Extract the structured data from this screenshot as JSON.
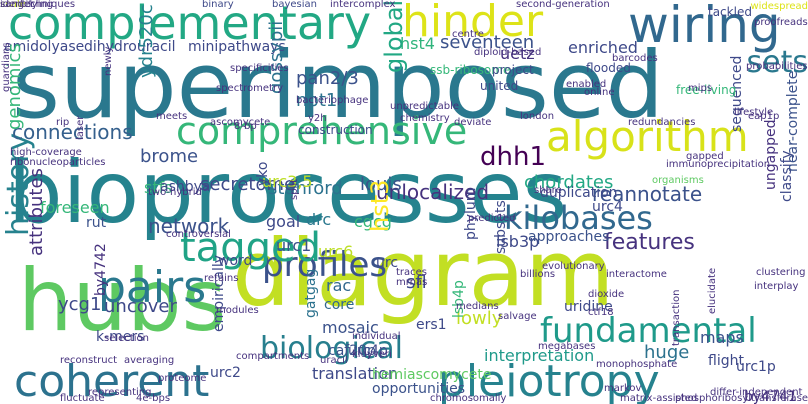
{
  "cloud": {
    "background": "#ffffff",
    "words": [
      {
        "t": "superimposed",
        "c": "#2a788e"
      },
      {
        "t": "bioprocesses",
        "c": "#25838e"
      },
      {
        "t": "diagram",
        "c": "#c2df23"
      },
      {
        "t": "hubs",
        "c": "#5ec962"
      },
      {
        "t": "complementary",
        "c": "#22a884"
      },
      {
        "t": "wiring",
        "c": "#31688e"
      },
      {
        "t": "hinder",
        "c": "#dde318"
      },
      {
        "t": "comprehensive",
        "c": "#35b779"
      },
      {
        "t": "algorithm",
        "c": "#d8e219"
      },
      {
        "t": "pleiotropy",
        "c": "#26828e"
      },
      {
        "t": "coherent",
        "c": "#2c728e"
      },
      {
        "t": "profiles",
        "c": "#3b528b"
      },
      {
        "t": "pairs",
        "c": "#2a788e"
      },
      {
        "t": "tagged",
        "c": "#20a386"
      },
      {
        "t": "fundamental",
        "c": "#1f9a8a"
      },
      {
        "t": "biological",
        "c": "#277f8e"
      },
      {
        "t": "kilobases",
        "c": "#31688e"
      },
      {
        "t": "history",
        "c": "#26828e"
      },
      {
        "t": "dhh1",
        "c": "#440154"
      },
      {
        "t": "sets",
        "c": "#2a788e"
      },
      {
        "t": "hst4",
        "c": "#2fb47c"
      },
      {
        "t": "seventeen",
        "c": "#3b528b"
      },
      {
        "t": "uetz",
        "c": "#46327e"
      },
      {
        "t": "amidolyase",
        "c": "#3e4989"
      },
      {
        "t": "dihydrouracil",
        "c": "#3e4989"
      },
      {
        "t": "minipathways",
        "c": "#3e4989"
      },
      {
        "t": "connections",
        "c": "#35608d"
      },
      {
        "t": "enriched",
        "c": "#3e4989"
      },
      {
        "t": "global",
        "c": "#22a884"
      },
      {
        "t": "ydr520c",
        "c": "#26828e"
      },
      {
        "t": "pan2/3",
        "c": "#3b528b"
      },
      {
        "t": "npt1",
        "c": "#2c728e"
      },
      {
        "t": "gossypii",
        "c": "#2c728e"
      },
      {
        "t": "network",
        "c": "#3b528b"
      },
      {
        "t": "features",
        "c": "#46327e"
      },
      {
        "t": "reannotate",
        "c": "#3b528b"
      },
      {
        "t": "unlocalized",
        "c": "#46327e"
      },
      {
        "t": "chordates",
        "c": "#22a884"
      },
      {
        "t": "stanford",
        "c": "#2c728e"
      },
      {
        "t": "louis",
        "c": "#3b528b"
      },
      {
        "t": "secretome",
        "c": "#3e4989"
      },
      {
        "t": "urc3,5",
        "c": "#bddf26"
      },
      {
        "t": "genomics",
        "c": "#35b779"
      },
      {
        "t": "goal",
        "c": "#3e4989"
      },
      {
        "t": "drc",
        "c": "#2a788e"
      },
      {
        "t": "cgcg",
        "c": "#35b779"
      },
      {
        "t": "hst3",
        "c": "#fde725"
      },
      {
        "t": "urc4",
        "c": "#3e4989"
      },
      {
        "t": "lsb3p",
        "c": "#3e4989"
      },
      {
        "t": "attributes",
        "c": "#46327e"
      },
      {
        "t": "uncover",
        "c": "#3e4989"
      },
      {
        "t": "ycg1",
        "c": "#3e4989"
      },
      {
        "t": "foreseen",
        "c": "#35b779"
      },
      {
        "t": "urc1",
        "c": "#3b528b"
      },
      {
        "t": "urc6",
        "c": "#bddf26"
      },
      {
        "t": "rac",
        "c": "#31688e"
      },
      {
        "t": "sfl",
        "c": "#3e4989"
      },
      {
        "t": "core",
        "c": "#31688e"
      },
      {
        "t": "mosaic",
        "c": "#3b528b"
      },
      {
        "t": "ers1",
        "c": "#3e4989"
      },
      {
        "t": "lowly",
        "c": "#c2df23"
      },
      {
        "t": "huge",
        "c": "#2c728e"
      },
      {
        "t": "maps",
        "c": "#3b528b"
      },
      {
        "t": "flight",
        "c": "#3e4989"
      },
      {
        "t": "interpretation",
        "c": "#1f9a8a"
      },
      {
        "t": "translation",
        "c": "#3e4989"
      },
      {
        "t": "opportunities",
        "c": "#3b528b"
      },
      {
        "t": "urc2",
        "c": "#3e4989"
      },
      {
        "t": "urc1p",
        "c": "#3e4989"
      },
      {
        "t": "urc4p",
        "c": "#3e4989"
      },
      {
        "t": "caf20p",
        "c": "#3b528b"
      },
      {
        "t": "k-mers",
        "c": "#3e4989"
      },
      {
        "t": "by4742",
        "c": "#46327e"
      },
      {
        "t": "gatgag",
        "c": "#2c728e"
      },
      {
        "t": "by4741",
        "c": "#46327e"
      },
      {
        "t": "sequenced",
        "c": "#3e4989"
      },
      {
        "t": "duplication",
        "c": "#3e4989"
      },
      {
        "t": "approaches",
        "c": "#3b528b"
      },
      {
        "t": "classify",
        "c": "#3e4989"
      },
      {
        "t": "ungapped",
        "c": "#46327e"
      },
      {
        "t": "near-complete",
        "c": "#3b528b"
      },
      {
        "t": "brome",
        "c": "#3b528b"
      },
      {
        "t": "stfs",
        "c": "#35b779"
      },
      {
        "t": "yko",
        "c": "#3e4989"
      },
      {
        "t": "ashbya",
        "c": "#3e4989"
      },
      {
        "t": "word",
        "c": "#3e4989"
      },
      {
        "t": "rut",
        "c": "#3b528b"
      },
      {
        "t": "urc",
        "c": "#3e4989"
      },
      {
        "t": "subsets",
        "c": "#3e4989"
      },
      {
        "t": "phylum",
        "c": "#3e4989"
      },
      {
        "t": "lsb4p",
        "c": "#35b779"
      },
      {
        "t": "hemiascomycete",
        "c": "#5ec962"
      },
      {
        "t": "empirically",
        "c": "#3e4989"
      },
      {
        "t": "uridine",
        "c": "#3e4989"
      },
      {
        "t": "free-living",
        "c": "#35b779"
      },
      {
        "t": "ssb-ribosome",
        "c": "#35b779"
      },
      {
        "t": "project",
        "c": "#3e4989"
      },
      {
        "t": "flooded",
        "c": "#3e4989"
      },
      {
        "t": "construction",
        "c": "#3e4989"
      },
      {
        "t": "united",
        "c": "#3e4989"
      },
      {
        "t": "tackled",
        "c": "#3e4989"
      },
      {
        "t": "binary",
        "c": "#3e4989"
      },
      {
        "t": "bayesian",
        "c": "#3e4989"
      },
      {
        "t": "techniques",
        "c": "#46327e"
      },
      {
        "t": "intercomplex",
        "c": "#46327e"
      },
      {
        "t": "second-generation",
        "c": "#46327e"
      },
      {
        "t": "widespread",
        "c": "#dde318"
      },
      {
        "t": "proofreads",
        "c": "#46327e"
      },
      {
        "t": "guardians",
        "c": "#46327e"
      },
      {
        "t": "high-coverage",
        "c": "#46327e"
      },
      {
        "t": "ribonucleoparticles",
        "c": "#46327e"
      },
      {
        "t": "spectrometry",
        "c": "#46327e"
      },
      {
        "t": "meets",
        "c": "#46327e"
      },
      {
        "t": "ascomycete",
        "c": "#46327e"
      },
      {
        "t": "deviate",
        "c": "#46327e"
      },
      {
        "t": "redundancies",
        "c": "#46327e"
      },
      {
        "t": "london",
        "c": "#46327e"
      },
      {
        "t": "chemistry",
        "c": "#46327e"
      },
      {
        "t": "diploid-based",
        "c": "#46327e"
      },
      {
        "t": "probabilities",
        "c": "#46327e"
      },
      {
        "t": "specificities",
        "c": "#46327e"
      },
      {
        "t": "barcodes",
        "c": "#46327e"
      },
      {
        "t": "mips",
        "c": "#46327e"
      },
      {
        "t": "eap1p",
        "c": "#46327e"
      },
      {
        "t": "bacteriophage",
        "c": "#46327e"
      },
      {
        "t": "8-bp",
        "c": "#46327e"
      },
      {
        "t": "y2h",
        "c": "#46327e"
      },
      {
        "t": "rip",
        "c": "#46327e"
      },
      {
        "t": "two-hybrid",
        "c": "#46327e"
      },
      {
        "t": "share",
        "c": "#46327e"
      },
      {
        "t": "interactome",
        "c": "#46327e"
      },
      {
        "t": "dioxide",
        "c": "#46327e"
      },
      {
        "t": "clustering",
        "c": "#46327e"
      },
      {
        "t": "interplay",
        "c": "#46327e"
      },
      {
        "t": "laser",
        "c": "#46327e"
      },
      {
        "t": "organisms",
        "c": "#5ec962"
      },
      {
        "t": "immunoprecipitation",
        "c": "#46327e"
      },
      {
        "t": "gapped",
        "c": "#46327e"
      },
      {
        "t": "split",
        "c": "#46327e"
      },
      {
        "t": "predicted",
        "c": "#46327e"
      },
      {
        "t": "controversial",
        "c": "#46327e"
      },
      {
        "t": "retains",
        "c": "#46327e"
      },
      {
        "t": "traces",
        "c": "#46327e"
      },
      {
        "t": "mrnas",
        "c": "#46327e"
      },
      {
        "t": "evolutionary",
        "c": "#46327e"
      },
      {
        "t": "billions",
        "c": "#46327e"
      },
      {
        "t": "medians",
        "c": "#46327e"
      },
      {
        "t": "ctf18",
        "c": "#46327e"
      },
      {
        "t": "salvage",
        "c": "#46327e"
      },
      {
        "t": "individual",
        "c": "#46327e"
      },
      {
        "t": "kluyveri",
        "c": "#46327e"
      },
      {
        "t": "selection",
        "c": "#46327e"
      },
      {
        "t": "modules",
        "c": "#46327e"
      },
      {
        "t": "transaction",
        "c": "#46327e"
      },
      {
        "t": "elucidate",
        "c": "#46327e"
      },
      {
        "t": "monophosphate",
        "c": "#46327e"
      },
      {
        "t": "reconstruct",
        "c": "#46327e"
      },
      {
        "t": "megabases",
        "c": "#46327e"
      },
      {
        "t": "markov",
        "c": "#46327e"
      },
      {
        "t": "compartments",
        "c": "#46327e"
      },
      {
        "t": "uracil",
        "c": "#46327e"
      },
      {
        "t": "averaging",
        "c": "#46327e"
      },
      {
        "t": "fluctuate",
        "c": "#46327e"
      },
      {
        "t": "4e-bps",
        "c": "#46327e"
      },
      {
        "t": "matrix-assisted",
        "c": "#46327e"
      },
      {
        "t": "phosphoribosyltransferase",
        "c": "#46327e"
      },
      {
        "t": "differ-independent",
        "c": "#46327e"
      },
      {
        "t": "chromosomally",
        "c": "#46327e"
      },
      {
        "t": "proteome",
        "c": "#46327e"
      },
      {
        "t": "representing",
        "c": "#46327e"
      },
      {
        "t": "newly",
        "c": "#46327e"
      },
      {
        "t": "centre",
        "c": "#46327e"
      },
      {
        "t": "enabled",
        "c": "#46327e"
      },
      {
        "t": "online",
        "c": "#46327e"
      },
      {
        "t": "unpredictable",
        "c": "#46327e"
      },
      {
        "t": "lifestyle",
        "c": "#46327e"
      },
      {
        "t": "scale",
        "c": "#c2df23"
      },
      {
        "t": "sanger",
        "c": "#46327e"
      },
      {
        "t": "identifying",
        "c": "#46327e"
      }
    ]
  }
}
